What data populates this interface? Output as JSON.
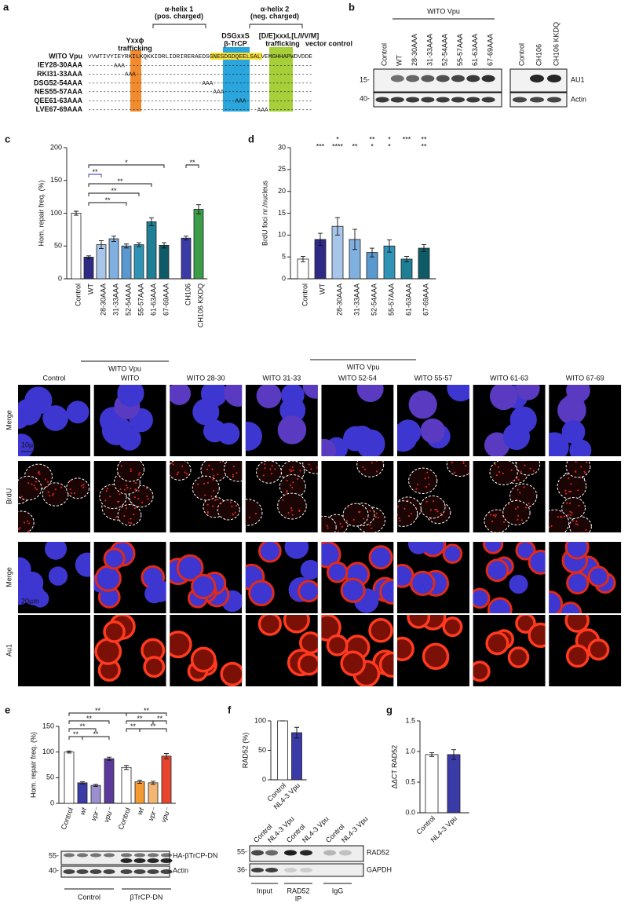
{
  "panel_a": {
    "label": "a",
    "helix_1": [
      "α-helix 1",
      "(pos. charged)"
    ],
    "helix_2": [
      "α-helix 2",
      "(neg. charged)"
    ],
    "motifs": [
      {
        "lines": [
          "Yxxϕ",
          "trafficking"
        ],
        "color": "#e8541c"
      },
      {
        "lines": [
          "DSGxxS",
          "β-TrCP"
        ],
        "color": "#1a8fd0"
      },
      {
        "lines": [
          "[D/E]xxxL[L/I/V/M]",
          "trafficking"
        ],
        "color": "#2e9e2e"
      }
    ],
    "vector_control": "vector control",
    "rows": [
      {
        "name": "WITO Vpu",
        "sequence": "VVWTIVYIEYRKILKQKKIDRLIDRIRERAEDSGNESDGDQEELSALVEMGHHAPWDVDDE"
      },
      {
        "name": "IEY28-30AAA",
        "sequence": "-------AAA---------------------------------------------------"
      },
      {
        "name": "RKI31-33AAA",
        "sequence": "----------AAA------------------------------------------------"
      },
      {
        "name": "DSG52-54AAA",
        "sequence": "-------------------------------AAA---------------------------"
      },
      {
        "name": "NES55-57AAA",
        "sequence": "----------------------------------AAA------------------------"
      },
      {
        "name": "QEE61-63AAA",
        "sequence": "----------------------------------------AAA------------------"
      },
      {
        "name": "LVE67-69AAA",
        "sequence": "----------------------------------------------AAA------------"
      }
    ]
  },
  "panel_b": {
    "label": "b",
    "group": "WITO Vpu",
    "lanes_left": [
      "Control",
      "WT",
      "28-30AAA",
      "31-33AAA",
      "52-54AAA",
      "55-57AAA",
      "61-63AAA",
      "67-69AAA"
    ],
    "lanes_right": [
      "Control",
      "CH106",
      "CH106 KKDQ"
    ],
    "markers": [
      "15-",
      "40-"
    ],
    "rows": [
      "AU1",
      "Actin"
    ]
  },
  "micrographs": {
    "columns": [
      "Control",
      "WITO",
      "WITO 28-30",
      "WITO 31-33",
      "WITO 52-54",
      "WITO 55-57",
      "WITO 61-63",
      "WITO 67-69"
    ],
    "rows": [
      "Merge",
      "BrdU",
      "Merge",
      "Au1"
    ],
    "scale_bars": [
      "10µm",
      "20µm"
    ]
  },
  "chart_data": [
    {
      "type": "bar",
      "label": "c",
      "y_label": "Hom. repair freq. (%)",
      "categories": [
        "Control",
        "WT",
        "28-30AAA",
        "31-33AAA",
        "52-54AAA",
        "55-57AAA",
        "61-63AAA",
        "67-69AAA",
        "CH106",
        "CH106 KKDQ"
      ],
      "values": [
        100,
        33,
        52,
        61,
        50,
        52,
        87,
        51,
        62,
        106
      ],
      "errors": [
        3,
        2,
        6,
        4,
        3,
        3,
        6,
        4,
        3,
        7
      ],
      "colors": [
        "#ffffff",
        "#2f2a86",
        "#a8c6ea",
        "#7fb0e0",
        "#5a99cf",
        "#2f93b5",
        "#1e7f95",
        "#0e5a67",
        "#3b3ba8",
        "#3b9d48"
      ],
      "ylim": [
        0,
        200
      ],
      "yticks": [
        0,
        50,
        100,
        150,
        200
      ],
      "brackets": [
        {
          "text": "**",
          "pair": [
            8,
            9
          ]
        },
        {
          "text": "*",
          "pair": [
            1,
            7
          ]
        },
        {
          "text": "**",
          "pair": [
            1,
            2
          ],
          "color": "#2b2bc0"
        },
        {
          "text": "**",
          "pair": [
            1,
            6
          ]
        },
        {
          "text": "**",
          "pair": [
            1,
            5
          ]
        },
        {
          "text": "**",
          "pair": [
            1,
            4
          ]
        }
      ],
      "group_label": "WITO Vpu"
    },
    {
      "type": "bar",
      "label": "d",
      "y_label": "BrdU foci nr./nucleus",
      "categories": [
        "Control",
        "WT",
        "28-30AAA",
        "31-33AAA",
        "52-54AAA",
        "55-57AAA",
        "61-63AAA",
        "67-69AAA"
      ],
      "values": [
        4.5,
        9,
        12,
        9,
        6,
        7.5,
        4.5,
        7
      ],
      "errors": [
        0.6,
        1.4,
        2,
        2.3,
        1,
        1.4,
        0.6,
        0.8
      ],
      "colors": [
        "#ffffff",
        "#2f2a86",
        "#a8c6ea",
        "#7fb0e0",
        "#5a99cf",
        "#2f93b5",
        "#1e7f95",
        "#0e5a67"
      ],
      "ylim": [
        0,
        30
      ],
      "yticks": [
        0,
        5,
        10,
        15,
        20,
        25,
        30
      ],
      "significance": [
        {
          "color": "#2b2bc0",
          "labels": [
            null,
            null,
            "*",
            null,
            "**",
            "*",
            "***",
            "**"
          ]
        },
        {
          "color": "#000000",
          "labels": [
            null,
            "***",
            "****",
            "**",
            "*",
            "*",
            null,
            "**"
          ]
        }
      ],
      "group_label": "WITO Vpu"
    },
    {
      "type": "bar",
      "label": "e",
      "y_label": "Hom. repair freq. (%)",
      "categories": [
        "Control",
        "wt",
        "vpr⁻",
        "vpu⁻",
        "Control",
        "wt",
        "vpr⁻",
        "vpu⁻"
      ],
      "values": [
        100,
        40,
        35,
        87,
        70,
        42,
        40,
        92
      ],
      "errors": [
        2,
        2,
        2,
        3,
        4,
        3,
        3,
        5
      ],
      "colors": [
        "#ffffff",
        "#3b3ba8",
        "#9b8fd0",
        "#5b3a9a",
        "#ffffff",
        "#f39a32",
        "#f5b574",
        "#e8452e"
      ],
      "ylim": [
        0,
        150
      ],
      "yticks": [
        0,
        50,
        100,
        150
      ],
      "brackets": [
        {
          "text": "**",
          "pair": [
            0,
            4
          ]
        },
        {
          "text": "**",
          "pair": [
            4,
            7
          ]
        },
        {
          "text": "**",
          "pair": [
            0,
            3
          ]
        },
        {
          "text": "**",
          "pair": [
            4,
            6
          ]
        },
        {
          "text": "**",
          "pair": [
            0,
            2
          ]
        },
        {
          "text": "**",
          "pair": [
            5,
            7
          ]
        },
        {
          "text": "**",
          "pair": [
            0,
            1
          ]
        },
        {
          "text": "**",
          "pair": [
            1,
            3
          ]
        },
        {
          "text": "**",
          "pair": [
            4,
            5
          ]
        },
        {
          "text": "**",
          "pair": [
            6,
            7
          ]
        }
      ]
    },
    {
      "type": "bar",
      "label": "f",
      "y_label": "RAD52 (%)",
      "categories": [
        "Control",
        "NL4-3 Vpu"
      ],
      "values": [
        100,
        80
      ],
      "errors": [
        0,
        9
      ],
      "colors": [
        "#ffffff",
        "#3b3ba8"
      ],
      "ylim": [
        0,
        100
      ],
      "yticks": [
        0,
        50,
        100
      ]
    },
    {
      "type": "bar",
      "label": "g",
      "y_label": "ΔΔCT RAD52",
      "categories": [
        "Control",
        "NL4-3 Vpu"
      ],
      "values": [
        0.95,
        0.95
      ],
      "errors": [
        0.03,
        0.08
      ],
      "colors": [
        "#ffffff",
        "#3b3ba8"
      ],
      "ylim": [
        0,
        1.5
      ],
      "yticks": [
        {
          "value": 0,
          "label": "0.0"
        },
        0.5,
        {
          "value": 1,
          "label": "1.0"
        },
        1.5
      ]
    }
  ],
  "blot_e": {
    "markers": [
      "55-",
      "40-"
    ],
    "rows": [
      "HA-βTrCP-DN",
      "Actin"
    ],
    "groups": [
      "Control",
      "βTrCP-DN"
    ]
  },
  "blot_f": {
    "lanes": [
      "Control",
      "NL4-3 Vpu",
      "Control",
      "NL4-3 Vpu",
      "Control",
      "NL4-3 Vpu"
    ],
    "markers": [
      "55-",
      "36-"
    ],
    "rows": [
      "RAD52",
      "GAPDH"
    ],
    "groups": [
      [
        "Input"
      ],
      [
        "RAD52",
        "IP"
      ],
      [
        "IgG"
      ]
    ]
  }
}
